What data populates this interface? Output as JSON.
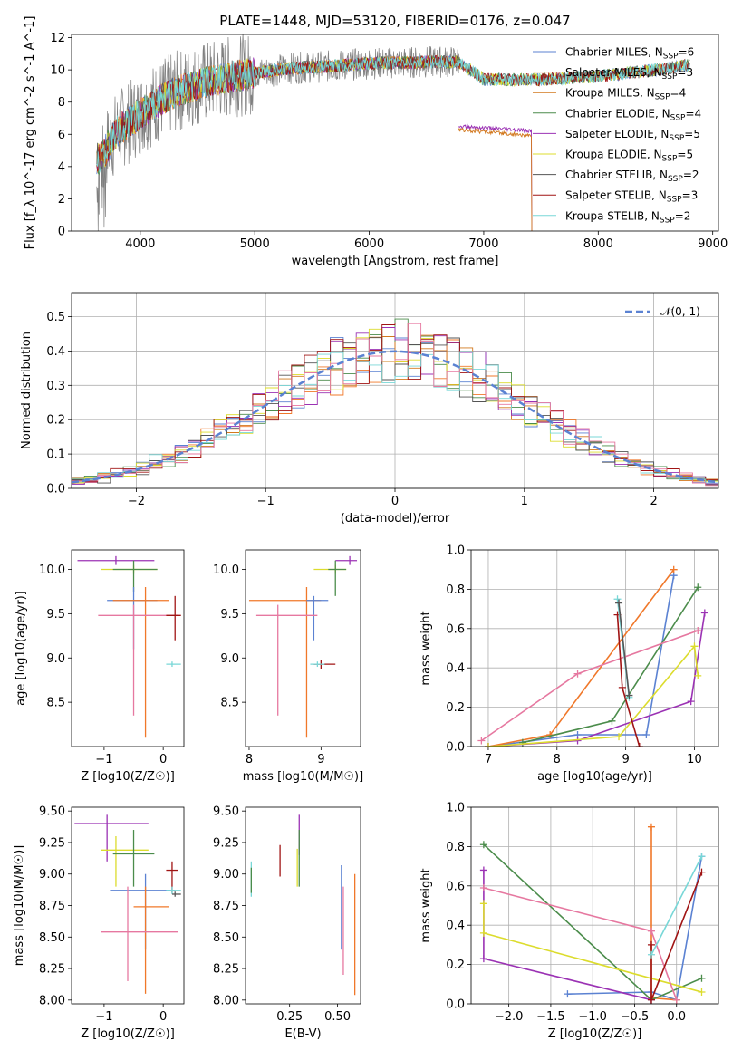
{
  "figure": {
    "title": "PLATE=1448, MJD=53120, FIBERID=0176, z=0.047"
  },
  "colors": {
    "Chabrier MILES": "#5b82d2",
    "Salpeter MILES": "#f0782a",
    "Kroupa MILES": "#d2781e",
    "Chabrier ELODIE": "#4b8c4b",
    "Salpeter ELODIE": "#9b32b4",
    "Kroupa ELODIE": "#dcdc2d",
    "Chabrier STELIB": "#555555",
    "Salpeter STELIB": "#a01414",
    "Kroupa STELIB": "#78d7d7",
    "Kroupa STELIB (age)": "#e678a0",
    "data": "#808080",
    "normal": "#5b82d2"
  },
  "chart_data": [
    {
      "id": "spectrum",
      "type": "line",
      "title": "PLATE=1448, MJD=53120, FIBERID=0176, z=0.047",
      "xlabel": "wavelength [Angstrom, rest frame]",
      "ylabel": "Flux [f_λ 10^-17 erg cm^-2 s^-1 A^-1]",
      "xlim": [
        3400,
        9050
      ],
      "ylim": [
        0,
        12.2
      ],
      "xticks": [
        4000,
        5000,
        6000,
        7000,
        8000,
        9000
      ],
      "yticks": [
        0,
        2,
        4,
        6,
        8,
        10,
        12
      ],
      "grid": false,
      "legend_position": "top-right",
      "legend": [
        {
          "name": "Chabrier MILES",
          "nssp": "6"
        },
        {
          "name": "Salpeter MILES",
          "nssp": "3"
        },
        {
          "name": "Kroupa MILES",
          "nssp": "4"
        },
        {
          "name": "Chabrier ELODIE",
          "nssp": "4"
        },
        {
          "name": "Salpeter ELODIE",
          "nssp": "5"
        },
        {
          "name": "Kroupa ELODIE",
          "nssp": "5"
        },
        {
          "name": "Chabrier STELIB",
          "nssp": "2"
        },
        {
          "name": "Salpeter STELIB",
          "nssp": "3"
        },
        {
          "name": "Kroupa STELIB",
          "nssp": "2"
        }
      ],
      "continuum": {
        "x": [
          3650,
          3800,
          3950,
          4100,
          4300,
          4500,
          4800,
          5000,
          5300,
          5600,
          6000,
          6300,
          6600,
          6780,
          7000,
          7500,
          8000,
          8500,
          8800
        ],
        "y": [
          4.5,
          6.2,
          7.0,
          7.8,
          8.6,
          9.1,
          9.6,
          9.8,
          10.1,
          10.2,
          10.4,
          10.45,
          10.5,
          10.5,
          9.4,
          9.4,
          9.6,
          10.0,
          10.3
        ]
      },
      "segments": [
        {
          "series": "Salpeter ELODIE",
          "x": [
            6780,
            7420
          ],
          "y": [
            6.5,
            6.2
          ]
        },
        {
          "series": "Kroupa MILES",
          "x": [
            6780,
            7420
          ],
          "y": [
            6.3,
            5.9
          ]
        }
      ]
    },
    {
      "id": "residuals",
      "type": "histogram",
      "xlabel": "(data-model)/error",
      "ylabel": "Normed distribution",
      "xlim": [
        -2.5,
        2.5
      ],
      "ylim": [
        0,
        0.57
      ],
      "xticks": [
        -2,
        -1,
        0,
        1,
        2
      ],
      "yticks": [
        0.0,
        0.1,
        0.2,
        0.3,
        0.4,
        0.5
      ],
      "grid": true,
      "bin_width": 0.1,
      "legend": "𝒩(0, 1)",
      "legend_position": "top-right",
      "normal": {
        "mu": 0,
        "sigma": 1
      },
      "hist_colors": [
        "#5b82d2",
        "#f0782a",
        "#d2781e",
        "#4b8c4b",
        "#9b32b4",
        "#dcdc2d",
        "#555555",
        "#a01414",
        "#78d7d7",
        "#e678a0"
      ]
    },
    {
      "id": "age-vs-Z",
      "type": "errorbar",
      "xlabel": "Z [log10(Z/Z☉)]",
      "ylabel": "age [log10(age/yr)]",
      "xlim": [
        -1.55,
        0.35
      ],
      "ylim": [
        8.0,
        10.22
      ],
      "xticks": [
        -1,
        0
      ],
      "yticks": [
        8.5,
        9.0,
        9.5,
        10.0
      ],
      "points": [
        {
          "c": "#9b32b4",
          "x": -0.8,
          "y": 10.1,
          "xe": [
            -1.45,
            -0.15
          ],
          "ye": [
            10.05,
            10.15
          ]
        },
        {
          "c": "#dcdc2d",
          "x": -0.5,
          "y": 10.0,
          "xe": [
            -1.05,
            -0.1
          ],
          "ye": [
            9.95,
            10.05
          ]
        },
        {
          "c": "#4b8c4b",
          "x": -0.5,
          "y": 10.0,
          "xe": [
            -0.85,
            -0.1
          ],
          "ye": [
            9.75,
            10.1
          ]
        },
        {
          "c": "#5b82d2",
          "x": -0.5,
          "y": 9.65,
          "xe": [
            -0.95,
            -0.1
          ],
          "ye": [
            9.1,
            9.8
          ]
        },
        {
          "c": "#f0782a",
          "x": -0.3,
          "y": 9.65,
          "xe": [
            -0.85,
            0.1
          ],
          "ye": [
            8.1,
            9.8
          ]
        },
        {
          "c": "#e678a0",
          "x": -0.5,
          "y": 9.48,
          "xe": [
            -1.1,
            0.25
          ],
          "ye": [
            8.35,
            9.6
          ]
        },
        {
          "c": "#a01414",
          "x": 0.2,
          "y": 9.48,
          "xe": [
            0.05,
            0.3
          ],
          "ye": [
            9.2,
            9.7
          ]
        },
        {
          "c": "#78d7d7",
          "x": 0.15,
          "y": 8.93,
          "xe": [
            0.05,
            0.3
          ],
          "ye": [
            8.9,
            8.96
          ]
        }
      ]
    },
    {
      "id": "age-vs-mass",
      "type": "errorbar",
      "xlabel": "mass [log10(M/M☉)]",
      "ylabel": "",
      "xlim": [
        7.95,
        9.55
      ],
      "ylim": [
        8.0,
        10.22
      ],
      "xticks": [
        8,
        9
      ],
      "yticks": [
        8.5,
        9.0,
        9.5,
        10.0
      ],
      "points": [
        {
          "c": "#9b32b4",
          "x": 9.4,
          "y": 10.1,
          "xe": [
            9.2,
            9.5
          ],
          "ye": [
            10.05,
            10.15
          ]
        },
        {
          "c": "#dcdc2d",
          "x": 9.2,
          "y": 10.0,
          "xe": [
            8.9,
            9.35
          ],
          "ye": [
            9.95,
            10.05
          ]
        },
        {
          "c": "#4b8c4b",
          "x": 9.2,
          "y": 10.0,
          "xe": [
            9.1,
            9.35
          ],
          "ye": [
            9.7,
            10.1
          ]
        },
        {
          "c": "#f0782a",
          "x": 8.8,
          "y": 9.65,
          "xe": [
            8.0,
            9.0
          ],
          "ye": [
            8.1,
            9.8
          ]
        },
        {
          "c": "#5b82d2",
          "x": 8.9,
          "y": 9.65,
          "xe": [
            8.8,
            9.1
          ],
          "ye": [
            9.2,
            9.7
          ]
        },
        {
          "c": "#e678a0",
          "x": 8.4,
          "y": 9.48,
          "xe": [
            8.1,
            8.95
          ],
          "ye": [
            8.35,
            9.6
          ]
        },
        {
          "c": "#a01414",
          "x": 9.0,
          "y": 8.93,
          "xe": [
            8.9,
            9.2
          ],
          "ye": [
            8.88,
            8.98
          ]
        },
        {
          "c": "#78d7d7",
          "x": 8.95,
          "y": 8.93,
          "xe": [
            8.85,
            9.05
          ],
          "ye": [
            8.9,
            8.96
          ]
        }
      ]
    },
    {
      "id": "weight-vs-age",
      "type": "line",
      "xlabel": "age [log10(age/yr)]",
      "ylabel": "mass weight",
      "xlim": [
        6.75,
        10.35
      ],
      "ylim": [
        0,
        1.0
      ],
      "xticks": [
        7,
        8,
        9,
        10
      ],
      "yticks": [
        0.0,
        0.2,
        0.4,
        0.6,
        0.8,
        1.0
      ],
      "grid": true,
      "series": [
        {
          "c": "#5b82d2",
          "x": [
            7.0,
            8.3,
            9.3,
            9.7
          ],
          "y": [
            0.0,
            0.06,
            0.06,
            0.87
          ]
        },
        {
          "c": "#f0782a",
          "x": [
            7.0,
            7.9,
            9.7
          ],
          "y": [
            0.0,
            0.06,
            0.9
          ]
        },
        {
          "c": "#4b8c4b",
          "x": [
            7.5,
            8.8,
            10.05
          ],
          "y": [
            0.02,
            0.13,
            0.81
          ]
        },
        {
          "c": "#9b32b4",
          "x": [
            7.0,
            8.3,
            9.95,
            10.15
          ],
          "y": [
            0.0,
            0.03,
            0.23,
            0.68
          ]
        },
        {
          "c": "#dcdc2d",
          "x": [
            7.0,
            8.9,
            10.0,
            10.05
          ],
          "y": [
            0.0,
            0.05,
            0.51,
            0.36
          ]
        },
        {
          "c": "#e678a0",
          "x": [
            6.9,
            8.3,
            10.05
          ],
          "y": [
            0.03,
            0.37,
            0.59
          ]
        },
        {
          "c": "#a01414",
          "x": [
            8.88,
            8.95,
            9.2
          ],
          "y": [
            0.67,
            0.3,
            0.0
          ]
        },
        {
          "c": "#78d7d7",
          "x": [
            8.88,
            9.05
          ],
          "y": [
            0.75,
            0.25
          ]
        },
        {
          "c": "#555555",
          "x": [
            8.9,
            9.05
          ],
          "y": [
            0.73,
            0.26
          ]
        }
      ]
    },
    {
      "id": "mass-vs-Z",
      "type": "errorbar",
      "xlabel": "Z [log10(Z/Z☉)]",
      "ylabel": "mass [log10(M/M☉)]",
      "xlim": [
        -1.55,
        0.35
      ],
      "ylim": [
        7.97,
        9.53
      ],
      "xticks": [
        -1,
        0
      ],
      "yticks": [
        8.0,
        8.25,
        8.5,
        8.75,
        9.0,
        9.25,
        9.5
      ],
      "points": [
        {
          "c": "#9b32b4",
          "x": -0.95,
          "y": 9.4,
          "xe": [
            -1.5,
            -0.25
          ],
          "ye": [
            9.1,
            9.47
          ]
        },
        {
          "c": "#dcdc2d",
          "x": -0.8,
          "y": 9.19,
          "xe": [
            -1.05,
            -0.25
          ],
          "ye": [
            8.9,
            9.3
          ]
        },
        {
          "c": "#4b8c4b",
          "x": -0.5,
          "y": 9.16,
          "xe": [
            -0.85,
            -0.15
          ],
          "ye": [
            8.9,
            9.35
          ]
        },
        {
          "c": "#a01414",
          "x": 0.15,
          "y": 9.03,
          "xe": [
            0.05,
            0.25
          ],
          "ye": [
            8.85,
            9.1
          ]
        },
        {
          "c": "#5b82d2",
          "x": -0.3,
          "y": 8.87,
          "xe": [
            -0.9,
            0.2
          ],
          "ye": [
            8.4,
            9.0
          ]
        },
        {
          "c": "#78d7d7",
          "x": 0.15,
          "y": 8.87,
          "xe": [
            0.05,
            0.3
          ],
          "ye": [
            8.84,
            8.9
          ]
        },
        {
          "c": "#f0782a",
          "x": -0.3,
          "y": 8.74,
          "xe": [
            -0.5,
            0.1
          ],
          "ye": [
            8.05,
            8.9
          ]
        },
        {
          "c": "#e678a0",
          "x": -0.6,
          "y": 8.54,
          "xe": [
            -1.05,
            0.25
          ],
          "ye": [
            8.15,
            8.9
          ]
        },
        {
          "c": "#555555",
          "x": 0.2,
          "y": 8.84,
          "xe": [
            0.15,
            0.3
          ],
          "ye": [
            8.82,
            8.86
          ]
        }
      ]
    },
    {
      "id": "mass-vs-EBV",
      "type": "errorbar",
      "xlabel": "E(B-V)",
      "ylabel": "",
      "xlim": [
        0.02,
        0.62
      ],
      "ylim": [
        7.97,
        9.53
      ],
      "xticks": [
        0.25,
        0.5
      ],
      "yticks": [
        8.0,
        8.25,
        8.5,
        8.75,
        9.0,
        9.25,
        9.5
      ],
      "points": [
        {
          "c": "#78d7d7",
          "x": 0.05,
          "y": 8.95,
          "ye": [
            8.82,
            9.1
          ]
        },
        {
          "c": "#4b8c4b",
          "x": 0.05,
          "y": 8.95,
          "ye": [
            8.85,
            9.05
          ]
        },
        {
          "c": "#a01414",
          "x": 0.2,
          "y": 9.1,
          "ye": [
            8.98,
            9.23
          ]
        },
        {
          "c": "#9b32b4",
          "x": 0.3,
          "y": 9.3,
          "ye": [
            9.15,
            9.47
          ]
        },
        {
          "c": "#4b8c4b",
          "x": 0.3,
          "y": 9.2,
          "ye": [
            8.9,
            9.35
          ]
        },
        {
          "c": "#dcdc2d",
          "x": 0.29,
          "y": 9.0,
          "ye": [
            8.9,
            9.2
          ]
        },
        {
          "c": "#5b82d2",
          "x": 0.52,
          "y": 8.8,
          "ye": [
            8.4,
            9.07
          ]
        },
        {
          "c": "#e678a0",
          "x": 0.53,
          "y": 8.6,
          "ye": [
            8.2,
            8.9
          ]
        },
        {
          "c": "#f0782a",
          "x": 0.59,
          "y": 8.5,
          "ye": [
            8.04,
            9.0
          ]
        }
      ]
    },
    {
      "id": "weight-vs-Z",
      "type": "line",
      "xlabel": "Z [log10(Z/Z☉)]",
      "ylabel": "mass weight",
      "xlim": [
        -2.45,
        0.5
      ],
      "ylim": [
        0,
        1.0
      ],
      "xticks": [
        -2.0,
        -1.5,
        -1.0,
        -0.5,
        0.0
      ],
      "yticks": [
        0.0,
        0.2,
        0.4,
        0.6,
        0.8,
        1.0
      ],
      "grid": true,
      "series": [
        {
          "c": "#5b82d2",
          "x": [
            -1.3,
            -0.3,
            0.0,
            0.3
          ],
          "y": [
            0.05,
            0.06,
            0.02,
            0.75
          ]
        },
        {
          "c": "#f0782a",
          "x": [
            -0.3,
            -0.3,
            0.0
          ],
          "y": [
            0.9,
            0.03,
            0.02
          ]
        },
        {
          "c": "#4b8c4b",
          "x": [
            -2.3,
            -0.3,
            0.3
          ],
          "y": [
            0.81,
            0.02,
            0.13
          ]
        },
        {
          "c": "#9b32b4",
          "x": [
            -2.3,
            -2.3,
            -0.3
          ],
          "y": [
            0.68,
            0.23,
            0.02
          ]
        },
        {
          "c": "#dcdc2d",
          "x": [
            -2.3,
            -2.3,
            0.3
          ],
          "y": [
            0.51,
            0.36,
            0.06
          ]
        },
        {
          "c": "#e678a0",
          "x": [
            -2.3,
            -0.3,
            0.0
          ],
          "y": [
            0.59,
            0.37,
            0.02
          ]
        },
        {
          "c": "#a01414",
          "x": [
            -0.3,
            -0.3,
            0.3
          ],
          "y": [
            0.3,
            0.02,
            0.67
          ]
        },
        {
          "c": "#78d7d7",
          "x": [
            -0.3,
            0.3
          ],
          "y": [
            0.25,
            0.75
          ]
        }
      ]
    }
  ]
}
